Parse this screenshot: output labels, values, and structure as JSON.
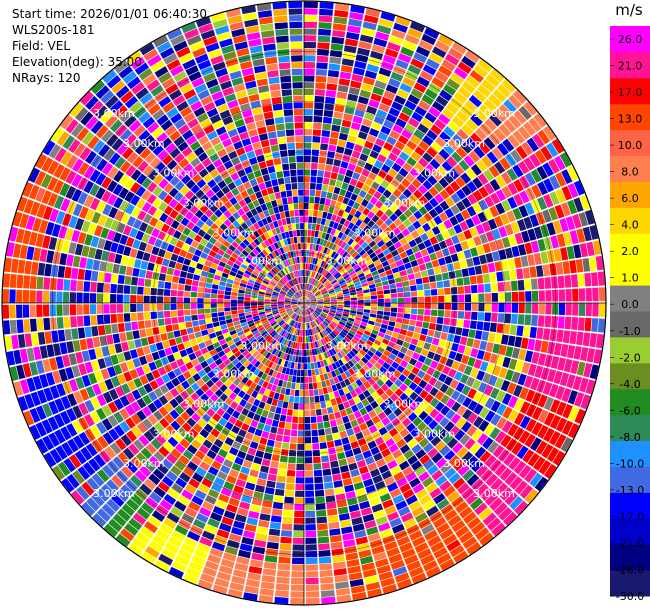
{
  "header": {
    "start_time": "Start time: 2026/01/01 06:40:30",
    "instrument": "WLS200s-181",
    "field": "Field: VEL",
    "elevation": "Elevation(deg): 35.00",
    "nrays": "NRays: 120"
  },
  "chart_data": {
    "type": "heatmap",
    "projection": "polar-ppi",
    "title": "",
    "n_rays": 120,
    "n_gates": 45,
    "range_km": [
      0,
      3.0
    ],
    "range_ring_label": "3.00km",
    "range_rings": [
      0.5,
      1.0,
      1.5,
      2.0,
      2.5,
      3.0
    ],
    "colorbar": {
      "unit": "m/s",
      "tick_labels": [
        "26.0",
        "21.0",
        "17.0",
        "13.0",
        "10.0",
        "8.0",
        "6.0",
        "4.0",
        "2.0",
        "1.0",
        "0.0",
        "-1.0",
        "-2.0",
        "-4.0",
        "-6.0",
        "-8.0",
        "-10.0",
        "-13.0",
        "-17.0",
        "-21.0",
        "-26.0",
        "-30.0"
      ],
      "levels": [
        -30,
        -26,
        -21,
        -17,
        -13,
        -10,
        -8,
        -6,
        -4,
        -2,
        -1,
        0,
        1,
        2,
        4,
        6,
        8,
        10,
        13,
        17,
        21,
        26,
        30
      ],
      "colors": [
        "#191970",
        "#000080",
        "#0000cd",
        "#0000ff",
        "#4169e1",
        "#1e90ff",
        "#2e8b57",
        "#228b22",
        "#6b8e23",
        "#9acd32",
        "#696969",
        "#808080",
        "#ffff00",
        "#ffff00",
        "#ffd700",
        "#ffa500",
        "#ff7f50",
        "#ff6347",
        "#ff4500",
        "#ff0000",
        "#ff1493",
        "#ff00ff"
      ]
    },
    "structured_azimuth_sectors": [
      {
        "az_start": 35,
        "az_end": 45,
        "gate_from": 0.78,
        "value": 4
      },
      {
        "az_start": 45,
        "az_end": 55,
        "gate_from": 0.8,
        "value": 8
      },
      {
        "az_start": 85,
        "az_end": 110,
        "gate_from": 0.78,
        "value": 21
      },
      {
        "az_start": 110,
        "az_end": 125,
        "gate_from": 0.8,
        "value": 17
      },
      {
        "az_start": 125,
        "az_end": 140,
        "gate_from": 0.8,
        "value": 21
      },
      {
        "az_start": 140,
        "az_end": 170,
        "gate_from": 0.82,
        "value": 13
      },
      {
        "az_start": 170,
        "az_end": 200,
        "gate_from": 0.86,
        "value": 8
      },
      {
        "az_start": 200,
        "az_end": 215,
        "gate_from": 0.86,
        "value": 1.5
      },
      {
        "az_start": 215,
        "az_end": 222,
        "gate_from": 0.84,
        "value": -6
      },
      {
        "az_start": 222,
        "az_end": 232,
        "gate_from": 0.82,
        "value": -11
      },
      {
        "az_start": 232,
        "az_end": 255,
        "gate_from": 0.84,
        "value": -17
      },
      {
        "az_start": 270,
        "az_end": 300,
        "gate_from": 0.9,
        "value": 13
      }
    ]
  }
}
